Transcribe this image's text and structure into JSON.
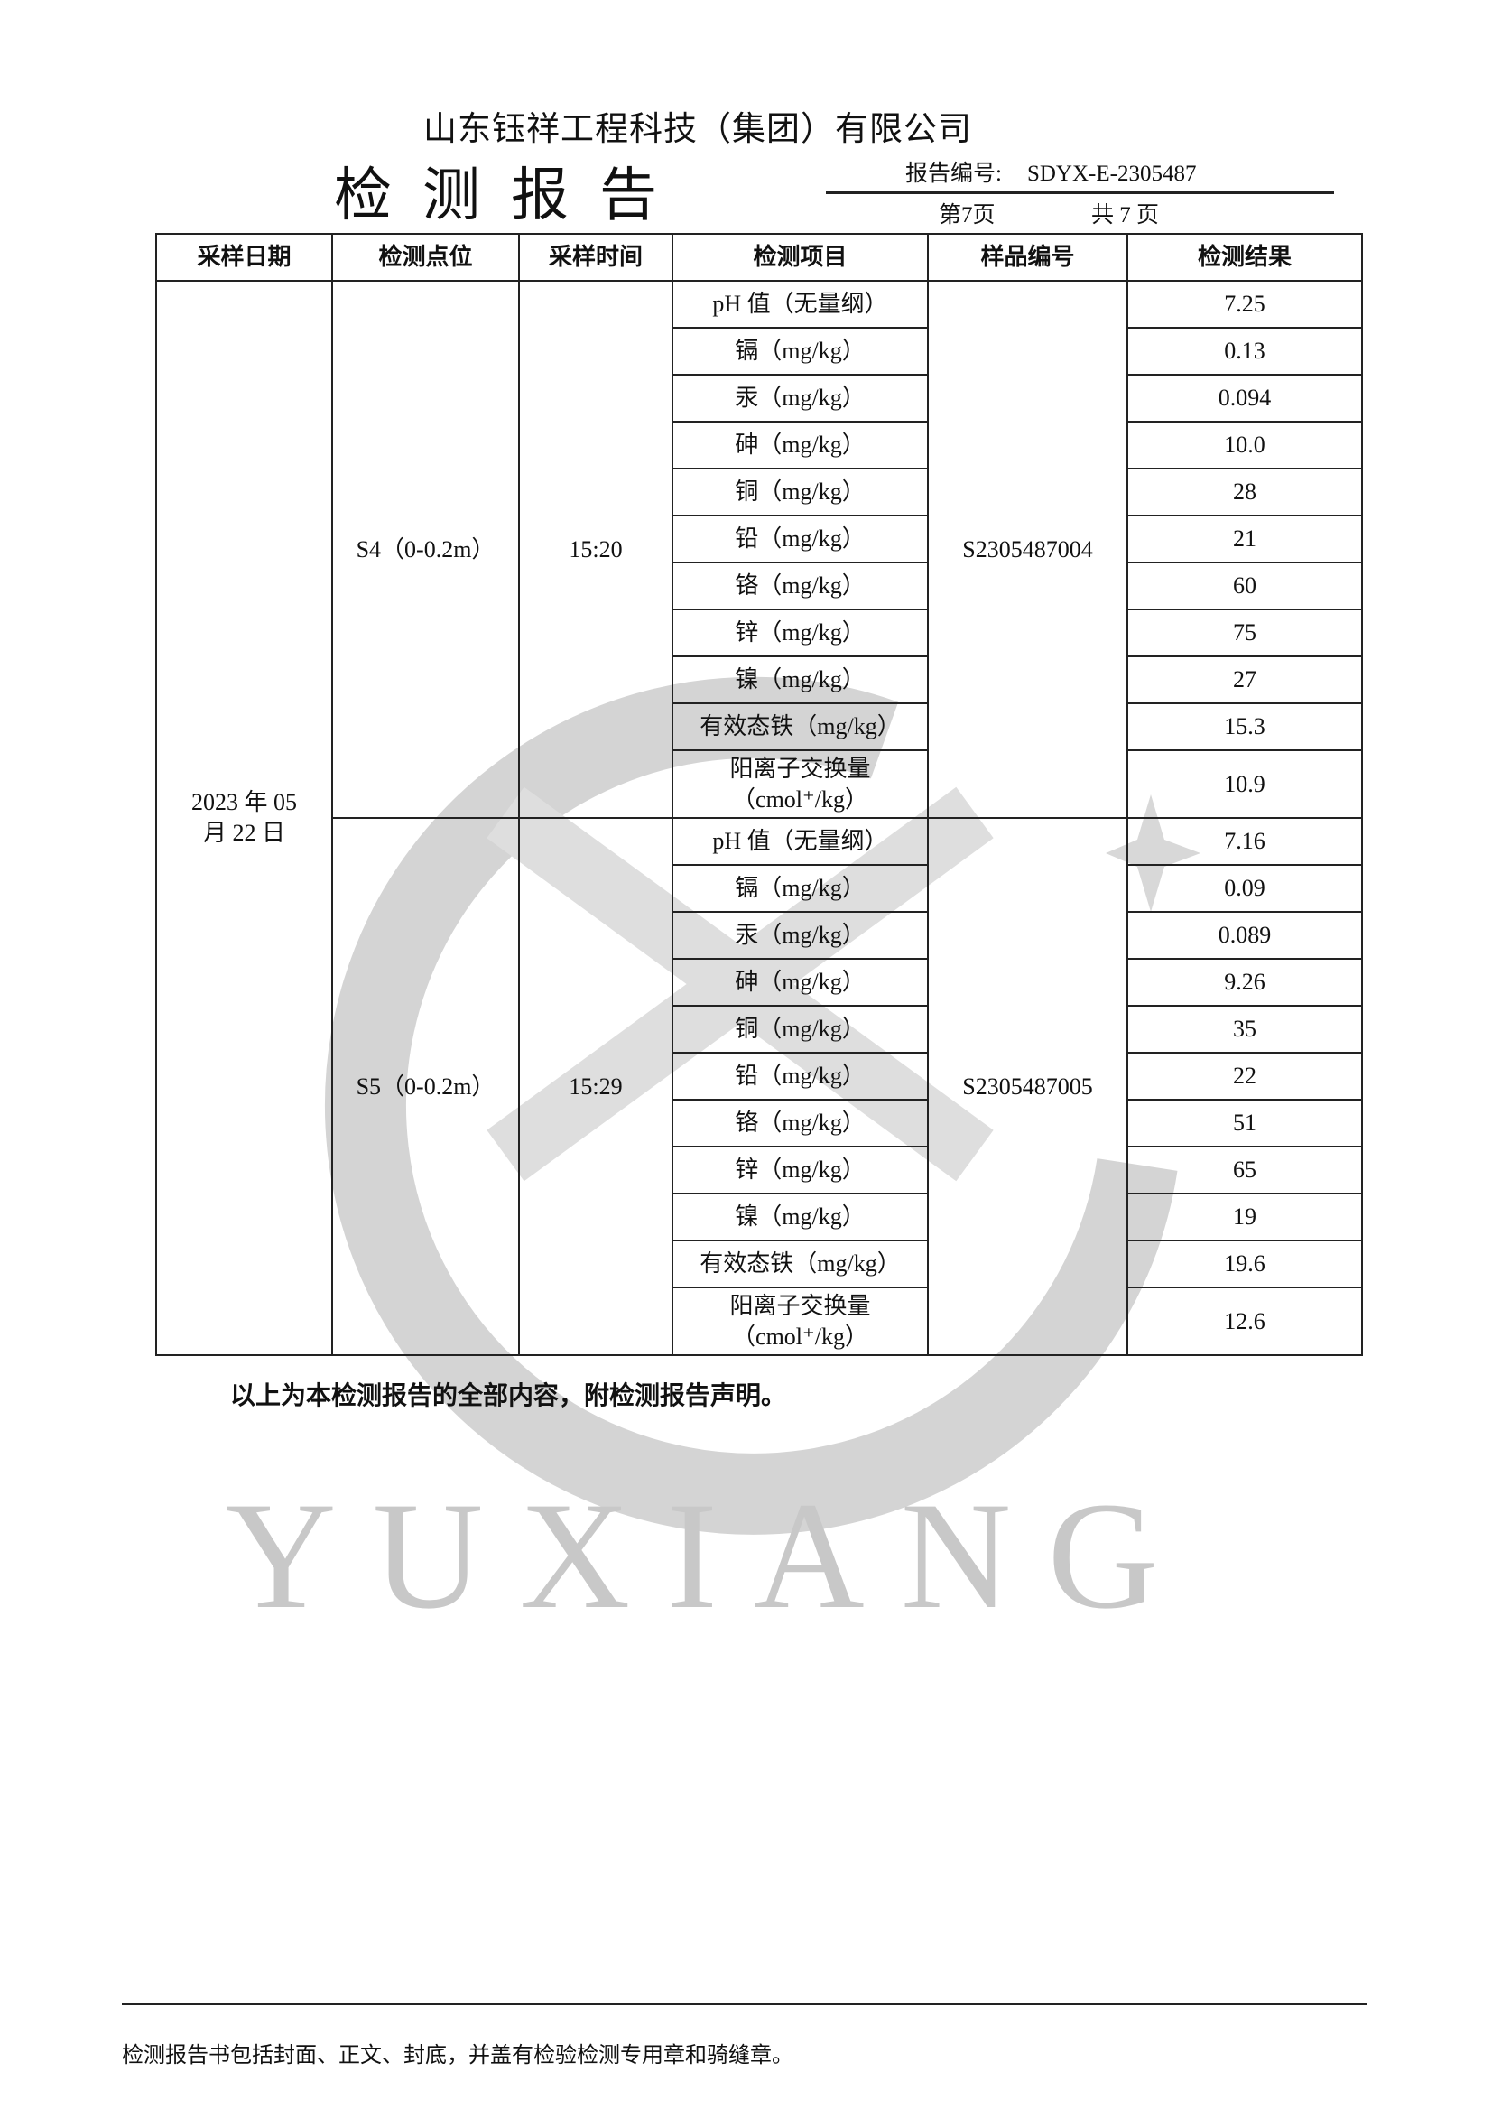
{
  "header": {
    "company": "山东钰祥工程科技（集团）有限公司",
    "title": "检测报告",
    "report_no_label": "报告编号:",
    "report_no": "SDYX-E-2305487",
    "page": "第7页",
    "total": "共 7 页"
  },
  "table": {
    "columns": [
      "采样日期",
      "检测点位",
      "采样时间",
      "检测项目",
      "样品编号",
      "检测结果"
    ],
    "date": "2023 年 05 月 22 日",
    "groups": [
      {
        "point": "S4（0-0.2m）",
        "time": "15:20",
        "sample_no": "S2305487004",
        "rows": [
          {
            "item": "pH 值（无量纲）",
            "result": "7.25"
          },
          {
            "item": "镉（mg/kg）",
            "result": "0.13"
          },
          {
            "item": "汞（mg/kg）",
            "result": "0.094"
          },
          {
            "item": "砷（mg/kg）",
            "result": "10.0"
          },
          {
            "item": "铜（mg/kg）",
            "result": "28"
          },
          {
            "item": "铅（mg/kg）",
            "result": "21"
          },
          {
            "item": "铬（mg/kg）",
            "result": "60"
          },
          {
            "item": "锌（mg/kg）",
            "result": "75"
          },
          {
            "item": "镍（mg/kg）",
            "result": "27"
          },
          {
            "item": "有效态铁（mg/kg）",
            "result": "15.3"
          },
          {
            "item": "阳离子交换量（cmol⁺/kg）",
            "result": "10.9"
          }
        ]
      },
      {
        "point": "S5（0-0.2m）",
        "time": "15:29",
        "sample_no": "S2305487005",
        "rows": [
          {
            "item": "pH 值（无量纲）",
            "result": "7.16"
          },
          {
            "item": "镉（mg/kg）",
            "result": "0.09"
          },
          {
            "item": "汞（mg/kg）",
            "result": "0.089"
          },
          {
            "item": "砷（mg/kg）",
            "result": "9.26"
          },
          {
            "item": "铜（mg/kg）",
            "result": "35"
          },
          {
            "item": "铅（mg/kg）",
            "result": "22"
          },
          {
            "item": "铬（mg/kg）",
            "result": "51"
          },
          {
            "item": "锌（mg/kg）",
            "result": "65"
          },
          {
            "item": "镍（mg/kg）",
            "result": "19"
          },
          {
            "item": "有效态铁（mg/kg）",
            "result": "19.6"
          },
          {
            "item": "阳离子交换量（cmol⁺/kg）",
            "result": "12.6"
          }
        ]
      }
    ]
  },
  "closing": "以上为本检测报告的全部内容，附检测报告声明。",
  "footer_note": "检测报告书包括封面、正文、封底，并盖有检验检测专用章和骑缝章。",
  "watermark": {
    "text": "YUXIANG",
    "color": "#c8c8c8"
  }
}
